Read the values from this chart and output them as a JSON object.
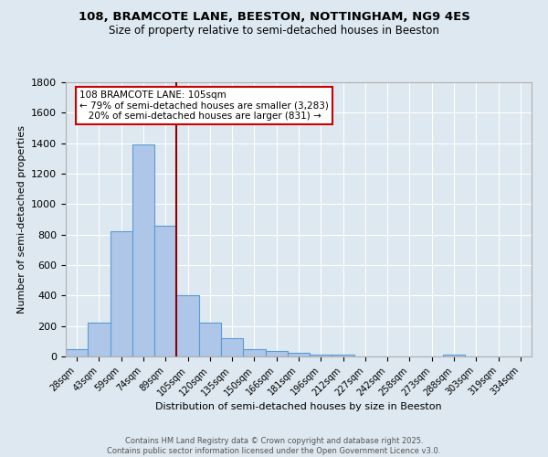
{
  "title1": "108, BRAMCOTE LANE, BEESTON, NOTTINGHAM, NG9 4ES",
  "title2": "Size of property relative to semi-detached houses in Beeston",
  "xlabel": "Distribution of semi-detached houses by size in Beeston",
  "ylabel": "Number of semi-detached properties",
  "bin_labels": [
    "28sqm",
    "43sqm",
    "59sqm",
    "74sqm",
    "89sqm",
    "105sqm",
    "120sqm",
    "135sqm",
    "150sqm",
    "166sqm",
    "181sqm",
    "196sqm",
    "212sqm",
    "227sqm",
    "242sqm",
    "258sqm",
    "273sqm",
    "288sqm",
    "303sqm",
    "319sqm",
    "334sqm"
  ],
  "bar_heights": [
    50,
    220,
    820,
    1390,
    860,
    400,
    220,
    120,
    50,
    35,
    25,
    15,
    10,
    0,
    0,
    0,
    0,
    15,
    0,
    0,
    0
  ],
  "bar_color": "#aec6e8",
  "bar_edge_color": "#5b9bd5",
  "vline_x_index": 5,
  "vline_color": "#8b0000",
  "annotation_text": "108 BRAMCOTE LANE: 105sqm\n← 79% of semi-detached houses are smaller (3,283)\n   20% of semi-detached houses are larger (831) →",
  "annotation_box_color": "#ffffff",
  "annotation_box_edge": "#cc0000",
  "background_color": "#dde8f0",
  "grid_color": "#ffffff",
  "ylim": [
    0,
    1800
  ],
  "yticks": [
    0,
    200,
    400,
    600,
    800,
    1000,
    1200,
    1400,
    1600,
    1800
  ],
  "footer1": "Contains HM Land Registry data © Crown copyright and database right 2025.",
  "footer2": "Contains public sector information licensed under the Open Government Licence v3.0."
}
